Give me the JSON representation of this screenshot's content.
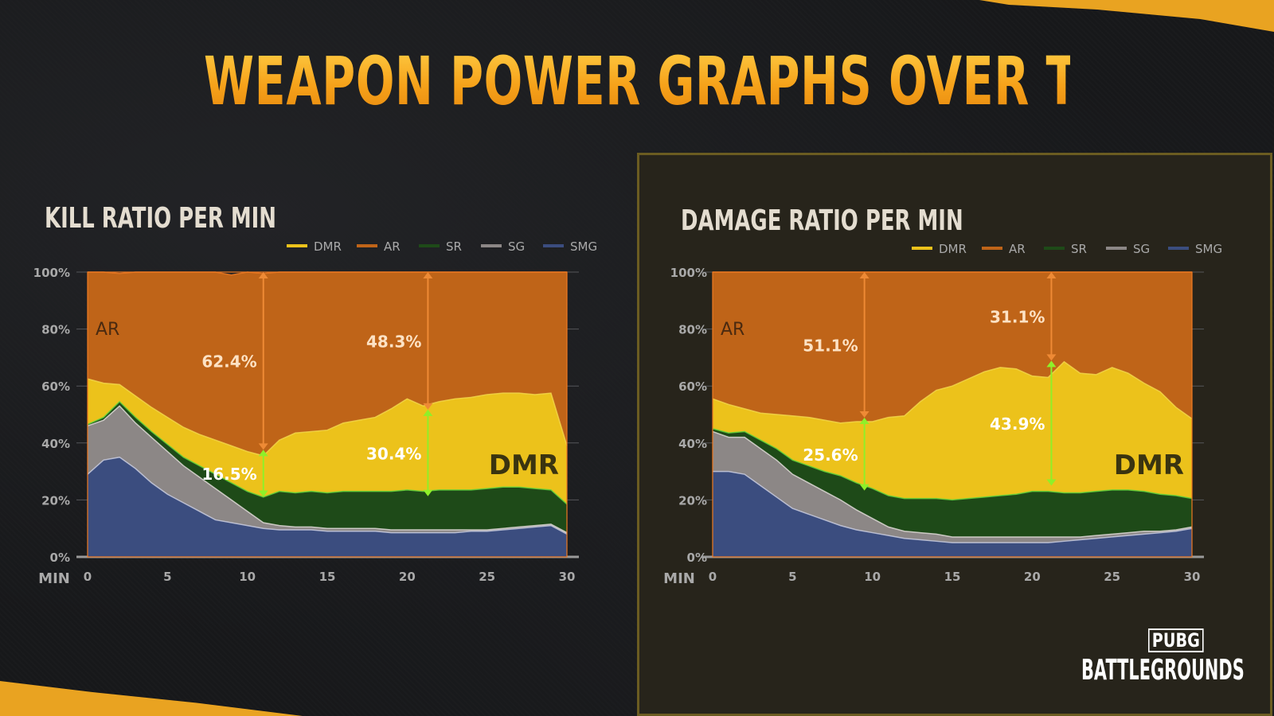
{
  "title": "WEAPON POWER GRAPHS OVER TIME",
  "logo": {
    "top": "PUBG",
    "bottom": "BATTLEGROUNDS"
  },
  "colors": {
    "DMR": "#ecc21b",
    "AR": "#bf6418",
    "SR": "#1e4a18",
    "SG": "#8c8786",
    "SMG": "#3b4d7f",
    "title": "#f6a21a"
  },
  "chart_data": [
    {
      "type": "area",
      "stacked": true,
      "title": "KILL RATIO PER MIN",
      "xlabel": "MIN",
      "xlim": [
        0,
        30
      ],
      "ylim": [
        0,
        100
      ],
      "x_ticks": [
        "0",
        "5",
        "10",
        "15",
        "20",
        "25",
        "30"
      ],
      "y_ticks": [
        "0%",
        "20%",
        "40%",
        "60%",
        "80%",
        "100%"
      ],
      "legend": [
        "DMR",
        "AR",
        "SR",
        "SG",
        "SMG"
      ],
      "legend_position": "top-right",
      "x": [
        0,
        1,
        2,
        3,
        4,
        5,
        6,
        7,
        8,
        9,
        10,
        11,
        12,
        13,
        14,
        15,
        16,
        17,
        18,
        19,
        20,
        21,
        22,
        23,
        24,
        25,
        26,
        27,
        28,
        29,
        30
      ],
      "series": [
        {
          "name": "SMG",
          "values": [
            29,
            34,
            35,
            31,
            26,
            22,
            19,
            16,
            13,
            12,
            11,
            10,
            9.5,
            9.5,
            9.5,
            9,
            9,
            9,
            9,
            8.5,
            8.5,
            8.5,
            8.5,
            8.5,
            9,
            9,
            9.5,
            10,
            10.5,
            11,
            8
          ]
        },
        {
          "name": "SG",
          "values": [
            17,
            14,
            18,
            16,
            16,
            15,
            13,
            12,
            11,
            8,
            5,
            2,
            1.5,
            1,
            1,
            1,
            1,
            1,
            1,
            1,
            1,
            1,
            1,
            1,
            0.5,
            0.5,
            0.5,
            0.5,
            0.5,
            0.5,
            0.5
          ]
        },
        {
          "name": "SR",
          "values": [
            0.5,
            1,
            1.5,
            2,
            2,
            2.5,
            3,
            4,
            5,
            6,
            7,
            9,
            12,
            12,
            12.5,
            12.5,
            13,
            13,
            13,
            13.5,
            14,
            13.5,
            14,
            14,
            14,
            14.5,
            14.5,
            14,
            13,
            12,
            10
          ]
        },
        {
          "name": "DMR",
          "values": [
            16,
            12,
            6,
            7.5,
            8.5,
            9.5,
            10.5,
            11,
            12,
            13,
            14,
            14.5,
            18,
            21,
            21,
            22,
            24,
            25,
            26,
            29,
            32,
            30,
            31,
            32,
            32.5,
            33,
            33,
            33,
            33,
            34,
            20.5
          ]
        },
        {
          "name": "AR",
          "values": [
            37.5,
            39,
            39,
            43.5,
            47.5,
            51,
            54.5,
            57,
            59,
            60,
            63,
            64,
            59,
            56.5,
            56,
            55.5,
            53,
            52,
            51,
            48,
            44.5,
            47,
            45.5,
            44.5,
            44,
            43,
            42.5,
            42.5,
            43,
            42.5,
            61
          ]
        }
      ],
      "annotations": [
        {
          "text": "62.4%",
          "x": 11,
          "from": 37.6,
          "to": 100,
          "color": "#ee8a35"
        },
        {
          "text": "16.5%",
          "x": 11,
          "from": 21.1,
          "to": 37.6,
          "color": "#8ff029"
        },
        {
          "text": "48.3%",
          "x": 21.3,
          "from": 51.7,
          "to": 100,
          "color": "#ee8a35"
        },
        {
          "text": "30.4%",
          "x": 21.3,
          "from": 21.3,
          "to": 51.7,
          "color": "#8ff029"
        }
      ],
      "area_labels": [
        "AR",
        "DMR"
      ]
    },
    {
      "type": "area",
      "stacked": true,
      "title": "DAMAGE RATIO PER MIN",
      "xlabel": "MIN",
      "xlim": [
        0,
        30
      ],
      "ylim": [
        0,
        100
      ],
      "x_ticks": [
        "0",
        "5",
        "10",
        "15",
        "20",
        "25",
        "30"
      ],
      "y_ticks": [
        "0%",
        "20%",
        "40%",
        "60%",
        "80%",
        "100%"
      ],
      "legend": [
        "DMR",
        "AR",
        "SR",
        "SG",
        "SMG"
      ],
      "legend_position": "top-right",
      "x": [
        0,
        1,
        2,
        3,
        4,
        5,
        6,
        7,
        8,
        9,
        10,
        11,
        12,
        13,
        14,
        15,
        16,
        17,
        18,
        19,
        20,
        21,
        22,
        23,
        24,
        25,
        26,
        27,
        28,
        29,
        30
      ],
      "series": [
        {
          "name": "SMG",
          "values": [
            30,
            30,
            29,
            25,
            21,
            17,
            15,
            13,
            11,
            9.5,
            8.5,
            7.5,
            6.5,
            6,
            5.5,
            5,
            5,
            5,
            5,
            5,
            5,
            5,
            5.5,
            6,
            6.5,
            7,
            7.5,
            8,
            8.5,
            9,
            10
          ]
        },
        {
          "name": "SG",
          "values": [
            14,
            12,
            13,
            13,
            13,
            12,
            11,
            10,
            9,
            7,
            5,
            3,
            2.5,
            2.5,
            2.5,
            2,
            2,
            2,
            2,
            2,
            2,
            2,
            1.5,
            1,
            1,
            1,
            1,
            1,
            0.5,
            0.5,
            0.5
          ]
        },
        {
          "name": "SR",
          "values": [
            1,
            1.5,
            2,
            3,
            4,
            5,
            6,
            7,
            8.5,
            9.5,
            10.5,
            11,
            11.5,
            12,
            12.5,
            13,
            13.5,
            14,
            14.5,
            15,
            16,
            16,
            15.5,
            15.5,
            15.5,
            15.5,
            15,
            14,
            13,
            12,
            10
          ]
        },
        {
          "name": "DMR",
          "values": [
            10.5,
            10,
            8,
            9.5,
            12,
            15.5,
            17,
            18,
            18.5,
            21.5,
            23.5,
            27.5,
            29,
            34,
            38,
            40,
            42,
            44,
            45,
            44,
            40.5,
            40,
            46,
            42,
            41,
            43,
            41,
            38,
            36,
            31,
            28
          ]
        },
        {
          "name": "AR",
          "values": [
            44.5,
            46.5,
            48,
            49.5,
            50,
            50.5,
            51,
            52,
            53,
            52.5,
            52.5,
            51,
            50.5,
            45.5,
            41.5,
            40,
            37.5,
            35,
            33.5,
            34,
            36.5,
            37,
            31.5,
            35.5,
            36,
            33.5,
            35.5,
            39,
            42,
            47.5,
            51.5
          ]
        }
      ],
      "annotations": [
        {
          "text": "51.1%",
          "x": 9.5,
          "from": 48.9,
          "to": 100,
          "color": "#ee8a35"
        },
        {
          "text": "25.6%",
          "x": 9.5,
          "from": 23.3,
          "to": 48.9,
          "color": "#8ff029"
        },
        {
          "text": "31.1%",
          "x": 21.2,
          "from": 68.9,
          "to": 100,
          "color": "#ee8a35"
        },
        {
          "text": "43.9%",
          "x": 21.2,
          "from": 25.0,
          "to": 68.9,
          "color": "#8ff029"
        }
      ],
      "area_labels": [
        "AR",
        "DMR"
      ]
    }
  ]
}
